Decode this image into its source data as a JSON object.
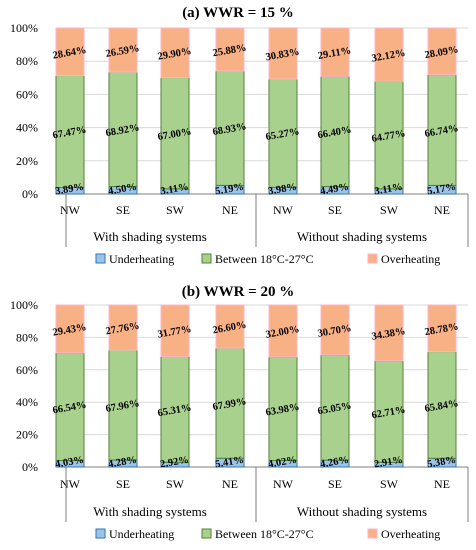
{
  "colors": {
    "underheating_fill": "#9dc3e6",
    "underheating_stroke": "#2e75b6",
    "between_fill": "#a9d18e",
    "between_stroke": "#548235",
    "overheating_fill": "#f8b185",
    "overheating_stroke": "#ffb4c8",
    "grid": "#d9d9d9",
    "axis": "#7f7f7f"
  },
  "chart_data": [
    {
      "type": "bar",
      "stacked": true,
      "title": "(a) WWR = 15 %",
      "yticks": [
        "0%",
        "20%",
        "40%",
        "60%",
        "80%",
        "100%"
      ],
      "ylim": [
        0,
        100
      ],
      "grid": true,
      "legend_position": "bottom",
      "categories": [
        "NW",
        "SE",
        "SW",
        "NE",
        "NW",
        "SE",
        "SW",
        "NE"
      ],
      "groups": [
        {
          "label": "With shading systems",
          "count": 4
        },
        {
          "label": "Without shading systems",
          "count": 4
        }
      ],
      "series": [
        {
          "name": "Underheating",
          "values": [
            3.89,
            4.5,
            3.11,
            5.19,
            3.98,
            4.49,
            3.11,
            5.17
          ],
          "labels": [
            "3.89%",
            "4.50%",
            "3.11%",
            "5.19%",
            "3.98%",
            "4.49%",
            "3.11%",
            "5.17%"
          ]
        },
        {
          "name": "Between 18°C-27°C",
          "values": [
            67.47,
            68.92,
            67.0,
            68.93,
            65.27,
            66.4,
            64.77,
            66.74
          ],
          "labels": [
            "67.47%",
            "68.92%",
            "67.00%",
            "68.93%",
            "65.27%",
            "66.40%",
            "64.77%",
            "66.74%"
          ]
        },
        {
          "name": "Overheating",
          "values": [
            28.64,
            26.59,
            29.9,
            25.88,
            30.83,
            29.11,
            32.12,
            28.09
          ],
          "labels": [
            "28.64%",
            "26.59%",
            "29.90%",
            "25.88%",
            "30.83%",
            "29.11%",
            "32.12%",
            "28.09%"
          ]
        }
      ]
    },
    {
      "type": "bar",
      "stacked": true,
      "title": "(b) WWR = 20 %",
      "yticks": [
        "0%",
        "20%",
        "40%",
        "60%",
        "80%",
        "100%"
      ],
      "ylim": [
        0,
        100
      ],
      "grid": true,
      "legend_position": "bottom",
      "categories": [
        "NW",
        "SE",
        "SW",
        "NE",
        "NW",
        "SE",
        "SW",
        "NE"
      ],
      "groups": [
        {
          "label": "With shading systems",
          "count": 4
        },
        {
          "label": "Without shading systems",
          "count": 4
        }
      ],
      "series": [
        {
          "name": "Underheating",
          "values": [
            4.03,
            4.28,
            2.92,
            5.41,
            4.02,
            4.26,
            2.91,
            5.38
          ],
          "labels": [
            "4.03%",
            "4.28%",
            "2.92%",
            "5.41%",
            "4.02%",
            "4.26%",
            "2.91%",
            "5.38%"
          ]
        },
        {
          "name": "Between 18°C-27°C",
          "values": [
            66.54,
            67.96,
            65.31,
            67.99,
            63.98,
            65.05,
            62.71,
            65.84
          ],
          "labels": [
            "66.54%",
            "67.96%",
            "65.31%",
            "67.99%",
            "63.98%",
            "65.05%",
            "62.71%",
            "65.84%"
          ]
        },
        {
          "name": "Overheating",
          "values": [
            29.43,
            27.76,
            31.77,
            26.6,
            32.0,
            30.7,
            34.38,
            28.78
          ],
          "labels": [
            "29.43%",
            "27.76%",
            "31.77%",
            "26.60%",
            "32.00%",
            "30.70%",
            "34.38%",
            "28.78%"
          ]
        }
      ]
    }
  ]
}
